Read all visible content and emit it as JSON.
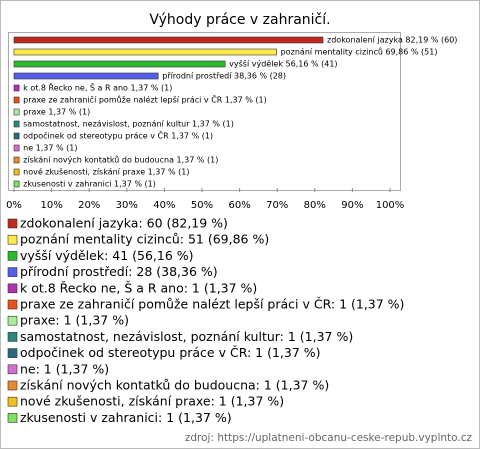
{
  "chart_data": {
    "type": "bar",
    "orientation": "horizontal",
    "title": "Výhody práce v zahraničí.",
    "categories": [
      "zdokonalení jazyka",
      "poznání mentality cizinců",
      "vyšší výdělek",
      "přírodní prostředí",
      "k ot.8 Řecko ne, Š a R ano",
      "praxe ze zahraničí pomůže nalézt lepší práci v ČR",
      "praxe",
      "samostatnost, nezávislost, poznání kultur",
      "odpočinek od stereotypu práce v ČR",
      "ne",
      "získání nových kontatků do budoucna",
      "nové zkušenosti, získání praxe",
      "zkusenosti v zahranici"
    ],
    "values": [
      82.19,
      69.86,
      56.16,
      38.36,
      1.37,
      1.37,
      1.37,
      1.37,
      1.37,
      1.37,
      1.37,
      1.37,
      1.37
    ],
    "counts": [
      60,
      51,
      41,
      28,
      1,
      1,
      1,
      1,
      1,
      1,
      1,
      1,
      1
    ],
    "value_labels": [
      "zdokonalení jazyka 82,19 % (60)",
      "poznání mentality cizinců 69,86 % (51)",
      "vyšší výdělek 56,16 % (41)",
      "přírodní prostředí 38,36 % (28)",
      "k ot.8 Řecko ne, Š a R ano 1,37 % (1)",
      "praxe ze zahraničí pomůže nalézt lepší práci v ČR 1,37 % (1)",
      "praxe 1,37 % (1)",
      "samostatnost, nezávislost, poznání kultur 1,37 % (1)",
      "odpočinek od stereotypu práce v ČR 1,37 % (1)",
      "ne 1,37 % (1)",
      "získání nových kontatků do budoucna 1,37 % (1)",
      "nové zkušenosti, získání praxe 1,37 % (1)",
      "zkusenosti v zahranici 1,37 % (1)"
    ],
    "legend_labels": [
      "zdokonalení jazyka: 60 (82,19 %)",
      "poznání mentality cizinců: 51 (69,86 %)",
      "vyšší výdělek: 41 (56,16 %)",
      "přírodní prostředí: 28 (38,36 %)",
      "k ot.8 Řecko ne, Š a R ano: 1 (1,37 %)",
      "praxe ze zahraničí pomůže nalézt lepší práci v ČR: 1 (1,37 %)",
      "praxe: 1 (1,37 %)",
      "samostatnost, nezávislost, poznání kultur: 1 (1,37 %)",
      "odpočinek od stereotypu práce v ČR: 1 (1,37 %)",
      "ne: 1 (1,37 %)",
      "získání nových kontatků do budoucna: 1 (1,37 %)",
      "nové zkušenosti, získání praxe: 1 (1,37 %)",
      "zkusenosti v zahranici: 1 (1,37 %)"
    ],
    "colors": [
      "#c0281c",
      "#ffe84a",
      "#2cb82c",
      "#5060e8",
      "#b030b0",
      "#e8501c",
      "#a8ec98",
      "#2a8a7a",
      "#2a6880",
      "#d070d0",
      "#e88a30",
      "#f0c020",
      "#80e060"
    ],
    "xlim": [
      0,
      100
    ],
    "xticks": [
      {
        "value": 0,
        "label": "0%"
      },
      {
        "value": 10,
        "label": "10%"
      },
      {
        "value": 20,
        "label": "20%"
      },
      {
        "value": 30,
        "label": "30%"
      },
      {
        "value": 40,
        "label": "40%"
      },
      {
        "value": 50,
        "label": "50%"
      },
      {
        "value": 60,
        "label": "60%"
      },
      {
        "value": 70,
        "label": "70%"
      },
      {
        "value": 80,
        "label": "80%"
      },
      {
        "value": 90,
        "label": "90%"
      },
      {
        "value": 100,
        "label": "100%"
      }
    ],
    "source": "zdroj: https://uplatneni-obcanu-ceske-repub.vyplnto.cz"
  }
}
